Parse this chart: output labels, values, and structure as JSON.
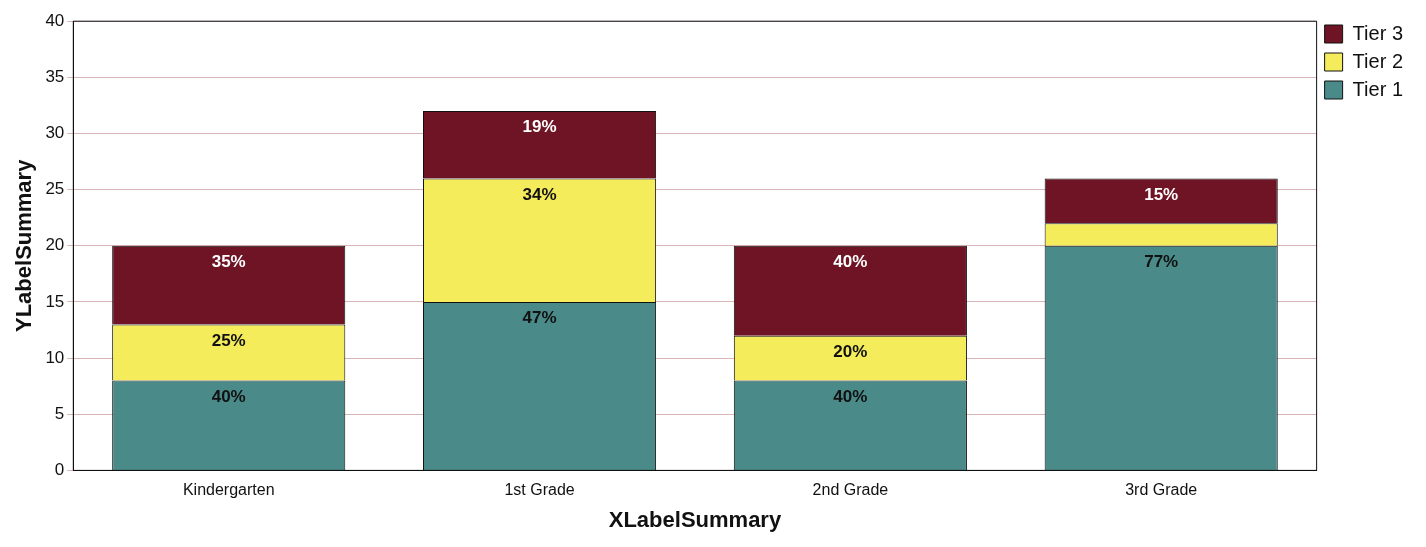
{
  "chart_data": {
    "type": "bar",
    "stacked": true,
    "xlabel": "XLabelSummary",
    "ylabel": "YLabelSummary",
    "categories": [
      "Kindergarten",
      "1st Grade",
      "2nd Grade",
      "3rd Grade"
    ],
    "series": [
      {
        "name": "Tier 1",
        "color": "#4a8b8a",
        "values": [
          8,
          15,
          8,
          20
        ]
      },
      {
        "name": "Tier 2",
        "color": "#f5ec5c",
        "values": [
          5,
          11,
          4,
          2
        ]
      },
      {
        "name": "Tier 3",
        "color": "#6e1424",
        "values": [
          7,
          6,
          8,
          4
        ]
      }
    ],
    "annotations": [
      {
        "text": "40%",
        "x": "Kindergarten",
        "y": 8
      },
      {
        "text": "25%",
        "x": "Kindergarten",
        "y": 13
      },
      {
        "text": "35%",
        "x": "Kindergarten",
        "y": 20
      },
      {
        "text": "47%",
        "x": "1st Grade",
        "y": 15
      },
      {
        "text": "34%",
        "x": "1st Grade",
        "y": 26
      },
      {
        "text": "19%",
        "x": "1st Grade",
        "y": 32
      },
      {
        "text": "40%",
        "x": "2nd Grade",
        "y": 8
      },
      {
        "text": "20%",
        "x": "2nd Grade",
        "y": 12
      },
      {
        "text": "40%",
        "x": "2nd Grade",
        "y": 20
      },
      {
        "text": "77%",
        "x": "3rd Grade",
        "y": 20
      },
      {
        "text": "15%",
        "x": "3rd Grade",
        "y": 26
      }
    ],
    "ylim": [
      0,
      40
    ],
    "yticks": [
      0,
      5,
      10,
      15,
      20,
      25,
      30,
      35,
      40
    ],
    "grid": "y",
    "legend": "top right"
  }
}
